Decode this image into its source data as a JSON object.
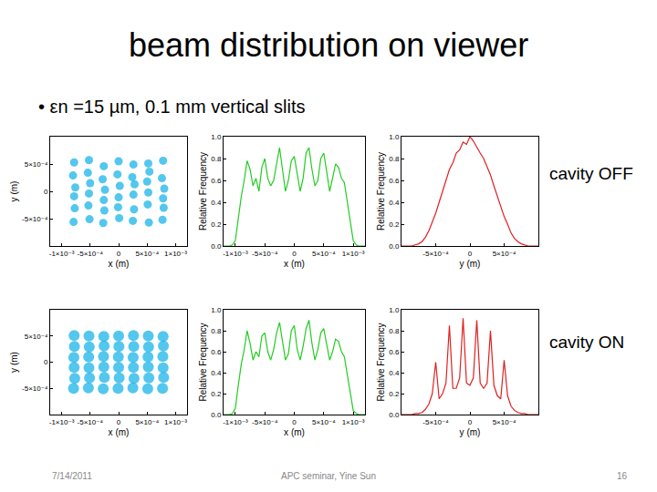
{
  "title": "beam distribution on viewer",
  "bullet": "• εn =15 µm, 0.1 mm vertical slits",
  "row_labels": [
    "cavity OFF",
    "cavity ON"
  ],
  "footer": {
    "date": "7/14/2011",
    "center": "APC seminar, Yine Sun",
    "page": "16"
  },
  "chart_data": [
    {
      "type": "scatter",
      "color": "#1ab4e8",
      "marker": "circle",
      "grid": false,
      "xlabel": "x (m)",
      "ylabel": "y (m)",
      "xlim": [
        -0.0012,
        0.0012
      ],
      "ylim": [
        -0.001,
        0.001
      ],
      "xticks": [
        {
          "value": -0.001,
          "label": "-1×10⁻³"
        },
        {
          "value": -0.0005,
          "label": "-5×10⁻⁴"
        },
        0,
        {
          "value": 0.0005,
          "label": "5×10⁻⁴"
        },
        {
          "value": 0.001,
          "label": "1×10⁻³"
        }
      ],
      "yticks": [
        {
          "value": -0.0005,
          "label": "-5×10⁻⁴"
        },
        0,
        {
          "value": 0.0005,
          "label": "5×10⁻⁴"
        }
      ],
      "x": [
        -0.00079,
        -0.00077,
        -0.00078,
        -0.00076,
        -0.0008,
        -0.00078,
        -0.00051,
        -0.00053,
        -0.00052,
        -0.0005,
        -0.00054,
        -0.00052,
        -0.00027,
        -0.00025,
        -0.00026,
        -0.00024,
        -0.00028,
        -0.00026,
        1e-05,
        -1e-05,
        0,
        2e-05,
        -2e-05,
        0,
        0.00025,
        0.00027,
        0.00026,
        0.00028,
        0.00024,
        0.00026,
        0.00053,
        0.00051,
        0.00052,
        0.0005,
        0.00054,
        0.00052,
        0.00077,
        0.00079,
        0.00078,
        0.0008,
        0.00076,
        0.00078
      ],
      "values": [
        -0.00056,
        -0.00031,
        -9e-05,
        7e-05,
        0.00029,
        0.00053,
        -0.00051,
        -0.00026,
        -4e-05,
        0.00015,
        0.00034,
        0.00057,
        -0.00058,
        -0.00035,
        -0.00016,
        3e-05,
        0.00022,
        0.00046,
        -0.00049,
        -0.00029,
        -0.00011,
        0.0001,
        0.00031,
        0.00055,
        -0.00054,
        -0.00033,
        -6e-05,
        0.00013,
        0.00026,
        0.00049,
        -0.00057,
        -0.00024,
        -2e-05,
        0.00018,
        0.00036,
        0.00051,
        -0.00052,
        -0.0003,
        -0.00013,
        5e-05,
        0.00024,
        0.00056
      ]
    },
    {
      "type": "line",
      "color": "#22cc22",
      "line_style": "solid",
      "grid": false,
      "xlabel": "x (m)",
      "ylabel": "Relative Frequency",
      "xlim": [
        -0.0012,
        0.0012
      ],
      "ylim": [
        0,
        1.0
      ],
      "xticks": [
        {
          "value": -0.001,
          "label": "-1×10⁻³"
        },
        {
          "value": -0.0005,
          "label": "-5×10⁻⁴"
        },
        0,
        {
          "value": 0.0005,
          "label": "5×10⁻⁴"
        },
        {
          "value": 0.001,
          "label": "1×10⁻³"
        }
      ],
      "yticks": [
        {
          "value": 0,
          "label": "0.0"
        },
        0.2,
        0.4,
        0.6,
        0.8,
        {
          "value": 1,
          "label": "1.0"
        }
      ],
      "x": [
        -0.0012,
        -0.00115,
        -0.0011,
        -0.00105,
        -0.001,
        -0.00095,
        -0.0009,
        -0.00085,
        -0.0008,
        -0.00075,
        -0.0007,
        -0.00065,
        -0.0006,
        -0.00055,
        -0.0005,
        -0.00045,
        -0.0004,
        -0.00035,
        -0.0003,
        -0.00025,
        -0.0002,
        -0.00015,
        -0.0001,
        -5e-05,
        0,
        5e-05,
        0.0001,
        0.00015,
        0.0002,
        0.00025,
        0.0003,
        0.00035,
        0.0004,
        0.00045,
        0.0005,
        0.00055,
        0.0006,
        0.00065,
        0.0007,
        0.00075,
        0.0008,
        0.00085,
        0.0009,
        0.00095,
        0.001,
        0.00105,
        0.0011,
        0.00115,
        0.0012
      ],
      "values": [
        0,
        0,
        0,
        0.01,
        0.05,
        0.25,
        0.45,
        0.6,
        0.78,
        0.7,
        0.55,
        0.62,
        0.5,
        0.72,
        0.8,
        0.62,
        0.55,
        0.6,
        0.75,
        0.9,
        0.7,
        0.5,
        0.6,
        0.78,
        0.82,
        0.65,
        0.5,
        0.62,
        0.85,
        0.9,
        0.7,
        0.55,
        0.6,
        0.8,
        0.85,
        0.68,
        0.5,
        0.62,
        0.75,
        0.72,
        0.62,
        0.58,
        0.4,
        0.2,
        0.05,
        0.01,
        0,
        0,
        0
      ]
    },
    {
      "type": "line",
      "color": "#e02020",
      "line_style": "solid",
      "grid": false,
      "xlabel": "y (m)",
      "ylabel": "Relative Frequency",
      "xlim": [
        -0.001,
        0.001
      ],
      "ylim": [
        0,
        1.0
      ],
      "xticks": [
        {
          "value": -0.0005,
          "label": "-5×10⁻⁴"
        },
        0,
        {
          "value": 0.0005,
          "label": "5×10⁻⁴"
        }
      ],
      "yticks": [
        {
          "value": 0,
          "label": "0.0"
        },
        0.2,
        0.4,
        0.6,
        0.8,
        {
          "value": 1,
          "label": "1.0"
        }
      ],
      "x": [
        -0.001,
        -0.00095,
        -0.0009,
        -0.00085,
        -0.0008,
        -0.00075,
        -0.0007,
        -0.00065,
        -0.0006,
        -0.00055,
        -0.0005,
        -0.00045,
        -0.0004,
        -0.00035,
        -0.0003,
        -0.00025,
        -0.0002,
        -0.00015,
        -0.0001,
        -5e-05,
        0,
        5e-05,
        0.0001,
        0.00015,
        0.0002,
        0.00025,
        0.0003,
        0.00035,
        0.0004,
        0.00045,
        0.0005,
        0.00055,
        0.0006,
        0.00065,
        0.0007,
        0.00075,
        0.0008,
        0.00085,
        0.0009,
        0.00095,
        0.001
      ],
      "values": [
        0,
        0,
        0,
        0,
        0.01,
        0.02,
        0.04,
        0.08,
        0.14,
        0.22,
        0.3,
        0.4,
        0.5,
        0.6,
        0.7,
        0.76,
        0.85,
        0.88,
        0.95,
        0.93,
        1.0,
        0.96,
        0.9,
        0.85,
        0.8,
        0.72,
        0.65,
        0.55,
        0.45,
        0.36,
        0.27,
        0.2,
        0.12,
        0.07,
        0.04,
        0.02,
        0.01,
        0,
        0,
        0,
        0
      ]
    },
    {
      "type": "scatter",
      "color": "#1ab4e8",
      "marker": "circle",
      "grid": false,
      "xlabel": "x (m)",
      "ylabel": "y (m)",
      "xlim": [
        -0.0012,
        0.0012
      ],
      "ylim": [
        -0.001,
        0.001
      ],
      "xticks": [
        {
          "value": -0.001,
          "label": "-1×10⁻³"
        },
        {
          "value": -0.0005,
          "label": "-5×10⁻⁴"
        },
        0,
        {
          "value": 0.0005,
          "label": "5×10⁻⁴"
        },
        {
          "value": 0.001,
          "label": "1×10⁻³"
        }
      ],
      "yticks": [
        {
          "value": -0.0005,
          "label": "-5×10⁻⁴"
        },
        0,
        {
          "value": 0.0005,
          "label": "5×10⁻⁴"
        }
      ],
      "x": [
        -0.00079,
        -0.00077,
        -0.00078,
        -0.000785,
        -0.000775,
        -0.00078,
        -0.00053,
        -0.00051,
        -0.00052,
        -0.000525,
        -0.000515,
        -0.00052,
        -0.00027,
        -0.00025,
        -0.00026,
        -0.000265,
        -0.000255,
        -0.00026,
        -1e-05,
        1e-05,
        0,
        -5e-06,
        5e-06,
        0,
        0.00025,
        0.00027,
        0.00026,
        0.000255,
        0.000265,
        0.00026,
        0.00051,
        0.00053,
        0.00052,
        0.000515,
        0.000525,
        0.00052,
        0.00077,
        0.00079,
        0.00078,
        0.000775,
        0.000785,
        0.00078
      ],
      "values": [
        -0.0005,
        -0.00031,
        -0.0001,
        9e-05,
        0.0003,
        0.00051,
        -0.00049,
        -0.0003,
        -0.00011,
        0.0001,
        0.00029,
        0.0005,
        -0.00051,
        -0.00029,
        -9e-05,
        0.00011,
        0.00031,
        0.00049,
        -0.0005,
        -0.0003,
        -0.0001,
        0.0001,
        0.0003,
        0.0005,
        -0.00049,
        -0.00031,
        -0.0001,
        9e-05,
        0.0003,
        0.00051,
        -0.00051,
        -0.0003,
        -9e-05,
        0.0001,
        0.00029,
        0.0005,
        -0.0005,
        -0.00029,
        -0.00011,
        0.00011,
        0.00031,
        0.00049
      ]
    },
    {
      "type": "line",
      "color": "#22cc22",
      "line_style": "solid",
      "grid": false,
      "xlabel": "x (m)",
      "ylabel": "Relative Frequency",
      "xlim": [
        -0.0012,
        0.0012
      ],
      "ylim": [
        0,
        1.0
      ],
      "xticks": [
        {
          "value": -0.001,
          "label": "-1×10⁻³"
        },
        {
          "value": -0.0005,
          "label": "-5×10⁻⁴"
        },
        0,
        {
          "value": 0.0005,
          "label": "5×10⁻⁴"
        },
        {
          "value": 0.001,
          "label": "1×10⁻³"
        }
      ],
      "yticks": [
        {
          "value": 0,
          "label": "0.0"
        },
        0.2,
        0.4,
        0.6,
        0.8,
        {
          "value": 1,
          "label": "1.0"
        }
      ],
      "x": [
        -0.0012,
        -0.00115,
        -0.0011,
        -0.00105,
        -0.001,
        -0.00095,
        -0.0009,
        -0.00085,
        -0.0008,
        -0.00075,
        -0.0007,
        -0.00065,
        -0.0006,
        -0.00055,
        -0.0005,
        -0.00045,
        -0.0004,
        -0.00035,
        -0.0003,
        -0.00025,
        -0.0002,
        -0.00015,
        -0.0001,
        -5e-05,
        0,
        5e-05,
        0.0001,
        0.00015,
        0.0002,
        0.00025,
        0.0003,
        0.00035,
        0.0004,
        0.00045,
        0.0005,
        0.00055,
        0.0006,
        0.00065,
        0.0007,
        0.00075,
        0.0008,
        0.00085,
        0.0009,
        0.00095,
        0.001,
        0.00105,
        0.0011,
        0.00115,
        0.0012
      ],
      "values": [
        0,
        0,
        0,
        0.01,
        0.06,
        0.28,
        0.48,
        0.62,
        0.8,
        0.68,
        0.52,
        0.6,
        0.55,
        0.75,
        0.78,
        0.6,
        0.52,
        0.62,
        0.78,
        0.88,
        0.68,
        0.52,
        0.58,
        0.8,
        0.85,
        0.62,
        0.52,
        0.65,
        0.82,
        0.9,
        0.68,
        0.52,
        0.62,
        0.78,
        0.82,
        0.65,
        0.52,
        0.6,
        0.72,
        0.7,
        0.6,
        0.55,
        0.38,
        0.18,
        0.04,
        0.01,
        0,
        0,
        0
      ]
    },
    {
      "type": "line",
      "color": "#e02020",
      "line_style": "solid",
      "grid": false,
      "xlabel": "y (m)",
      "ylabel": "Relative Frequency",
      "xlim": [
        -0.001,
        0.001
      ],
      "ylim": [
        0,
        1.0
      ],
      "xticks": [
        {
          "value": -0.0005,
          "label": "-5×10⁻⁴"
        },
        0,
        {
          "value": 0.0005,
          "label": "5×10⁻⁴"
        }
      ],
      "yticks": [
        {
          "value": 0,
          "label": "0.0"
        },
        0.2,
        0.4,
        0.6,
        0.8,
        {
          "value": 1,
          "label": "1.0"
        }
      ],
      "x": [
        -0.001,
        -0.00095,
        -0.0009,
        -0.00085,
        -0.0008,
        -0.00075,
        -0.0007,
        -0.00065,
        -0.0006,
        -0.00055,
        -0.0005,
        -0.00045,
        -0.0004,
        -0.00035,
        -0.0003,
        -0.00025,
        -0.0002,
        -0.00015,
        -0.0001,
        -5e-05,
        0,
        5e-05,
        0.0001,
        0.00015,
        0.0002,
        0.00025,
        0.0003,
        0.00035,
        0.0004,
        0.00045,
        0.0005,
        0.00055,
        0.0006,
        0.00065,
        0.0007,
        0.00075,
        0.0008,
        0.00085,
        0.0009,
        0.00095,
        0.001
      ],
      "values": [
        0,
        0,
        0,
        0,
        0.01,
        0.01,
        0.02,
        0.05,
        0.1,
        0.2,
        0.5,
        0.15,
        0.2,
        0.3,
        0.85,
        0.25,
        0.25,
        0.35,
        0.92,
        0.3,
        0.28,
        0.35,
        0.9,
        0.3,
        0.25,
        0.3,
        0.8,
        0.28,
        0.18,
        0.15,
        0.52,
        0.18,
        0.08,
        0.04,
        0.02,
        0.01,
        0.01,
        0,
        0,
        0,
        0
      ]
    }
  ]
}
